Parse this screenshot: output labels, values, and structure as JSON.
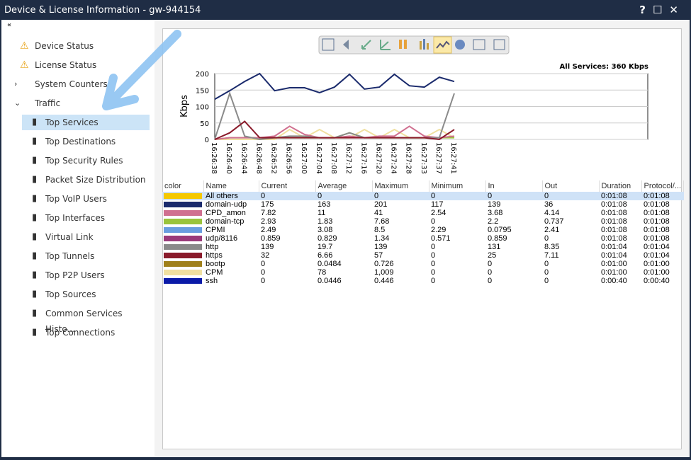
{
  "window": {
    "title": "Device & License Information - gw-944154"
  },
  "sidebar": {
    "items": [
      "Device Status",
      "License Status",
      "System Counters",
      "Traffic",
      "Top Services",
      "Top Destinations",
      "Top Security Rules",
      "Packet Size Distribution",
      "Top VoIP Users",
      "Top Interfaces",
      "Virtual Link",
      "Top Tunnels",
      "Top P2P Users",
      "Top Sources",
      "Common Services Histo...",
      "Top Connections"
    ]
  },
  "chart_data": {
    "type": "line",
    "annotation": "All Services: 360 Kbps",
    "y_label": "Kbps",
    "categories": [
      "16:26:38",
      "16:26:40",
      "16:26:44",
      "16:26:48",
      "16:26:52",
      "16:26:56",
      "16:27:00",
      "16:27:04",
      "16:27:08",
      "16:27:12",
      "16:27:16",
      "16:27:20",
      "16:27:24",
      "16:27:28",
      "16:27:33",
      "16:27:37",
      "16:27:41"
    ],
    "ylim": [
      0,
      200
    ],
    "yticks": [
      0,
      50,
      100,
      150,
      200
    ],
    "grid": true,
    "series": [
      {
        "color": "#f0e0a0",
        "values": [
          0,
          0,
          0,
          0,
          0,
          30,
          5,
          30,
          5,
          5,
          30,
          5,
          30,
          5,
          5,
          30,
          5
        ]
      },
      {
        "color": "#9ac43c",
        "values": [
          0,
          5,
          5,
          5,
          5,
          5,
          5,
          5,
          5,
          20,
          5,
          5,
          5,
          5,
          5,
          5,
          5
        ]
      },
      {
        "color": "#d07090",
        "values": [
          0,
          5,
          5,
          5,
          10,
          40,
          15,
          5,
          5,
          10,
          5,
          10,
          10,
          40,
          10,
          5,
          10
        ]
      },
      {
        "color": "#8a8a8a",
        "values": [
          0,
          140,
          10,
          0,
          5,
          10,
          10,
          5,
          5,
          20,
          5,
          5,
          5,
          5,
          5,
          5,
          140
        ]
      },
      {
        "color": "#8a1a2a",
        "values": [
          0,
          20,
          55,
          5,
          5,
          5,
          5,
          5,
          5,
          5,
          5,
          5,
          5,
          5,
          5,
          0,
          30
        ]
      },
      {
        "color": "#1a2a6c",
        "values": [
          122,
          148,
          176,
          200,
          148,
          157,
          157,
          142,
          159,
          198,
          153,
          159,
          198,
          163,
          159,
          189,
          176
        ]
      }
    ]
  },
  "table": {
    "columns": [
      "color",
      "Name",
      "Current",
      "Average",
      "Maximum",
      "Minimum",
      "In",
      "Out",
      "Duration",
      "Protocol/..."
    ],
    "swatches": [
      "#f5c800",
      "#1a2a6c",
      "#d07090",
      "#9ac43c",
      "#6a9ee0",
      "#9a3a7a",
      "#8a8a8a",
      "#8a1a2a",
      "#a0801a",
      "#f0e0a0",
      "#0a1aa8"
    ],
    "rows": [
      [
        "All others",
        "0",
        "0",
        "0",
        "0",
        "0",
        "0",
        "0:01:08",
        "0:01:08"
      ],
      [
        "domain-udp",
        "175",
        "163",
        "201",
        "117",
        "139",
        "36",
        "0:01:08",
        "0:01:08"
      ],
      [
        "CPD_amon",
        "7.82",
        "11",
        "41",
        "2.54",
        "3.68",
        "4.14",
        "0:01:08",
        "0:01:08"
      ],
      [
        "domain-tcp",
        "2.93",
        "1.83",
        "7.68",
        "0",
        "2.2",
        "0.737",
        "0:01:08",
        "0:01:08"
      ],
      [
        "CPMI",
        "2.49",
        "3.08",
        "8.5",
        "2.29",
        "0.0795",
        "2.41",
        "0:01:08",
        "0:01:08"
      ],
      [
        "udp/8116",
        "0.859",
        "0.829",
        "1.34",
        "0.571",
        "0.859",
        "0",
        "0:01:08",
        "0:01:08"
      ],
      [
        "http",
        "139",
        "19.7",
        "139",
        "0",
        "131",
        "8.35",
        "0:01:04",
        "0:01:04"
      ],
      [
        "https",
        "32",
        "6.66",
        "57",
        "0",
        "25",
        "7.11",
        "0:01:04",
        "0:01:04"
      ],
      [
        "bootp",
        "0",
        "0.0484",
        "0.726",
        "0",
        "0",
        "0",
        "0:01:00",
        "0:01:00"
      ],
      [
        "CPM",
        "0",
        "78",
        "1,009",
        "0",
        "0",
        "0",
        "0:01:00",
        "0:01:00"
      ],
      [
        "ssh",
        "0",
        "0.0446",
        "0.446",
        "0",
        "0",
        "0",
        "0:00:40",
        "0:00:40"
      ]
    ]
  }
}
